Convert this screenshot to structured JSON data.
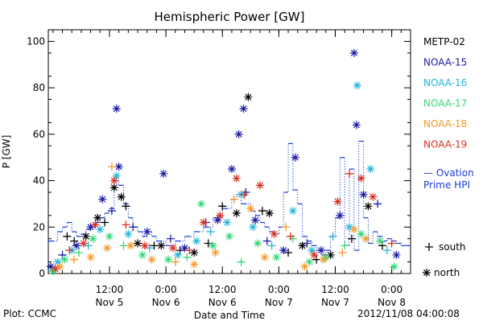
{
  "chart_data": {
    "type": "scatter",
    "title": "Hemispheric Power [GW]",
    "xlabel": "Date and Time",
    "ylabel": "P [GW]",
    "xlim": [
      "2012-11-04T23:00",
      "2012-11-08T04:00"
    ],
    "ylim": [
      0,
      105
    ],
    "grid": false,
    "legend_placement": "right",
    "y_ticks": [
      0,
      20,
      40,
      60,
      80,
      100
    ],
    "x_ticks": [
      {
        "t": "2012-11-05T12:00",
        "line1": "12:00",
        "line2": "Nov 5"
      },
      {
        "t": "2012-11-06T00:00",
        "line1": "0:00",
        "line2": "Nov 6"
      },
      {
        "t": "2012-11-06T12:00",
        "line1": "12:00",
        "line2": "Nov 6"
      },
      {
        "t": "2012-11-07T00:00",
        "line1": "0:00",
        "line2": "Nov 7"
      },
      {
        "t": "2012-11-07T12:00",
        "line1": "12:00",
        "line2": "Nov 7"
      },
      {
        "t": "2012-11-08T00:00",
        "line1": "0:00",
        "line2": "Nov 8"
      }
    ],
    "series": [
      {
        "name": "METP-02",
        "color": "#000000",
        "points": [
          [
            "2012-11-05T03:00",
            16,
            "south"
          ],
          [
            "2012-11-05T04:30",
            14,
            "south"
          ],
          [
            "2012-11-05T07:00",
            16,
            "north"
          ],
          [
            "2012-11-05T09:30",
            24,
            "north"
          ],
          [
            "2012-11-05T11:00",
            22,
            "south"
          ],
          [
            "2012-11-05T13:00",
            37,
            "north"
          ],
          [
            "2012-11-05T14:30",
            33,
            "north"
          ],
          [
            "2012-11-05T15:30",
            29,
            "south"
          ],
          [
            "2012-11-05T18:00",
            13,
            "north"
          ],
          [
            "2012-11-05T21:30",
            12,
            "south"
          ],
          [
            "2012-11-05T23:00",
            12,
            "north"
          ],
          [
            "2012-11-06T03:00",
            10,
            "south"
          ],
          [
            "2012-11-06T06:00",
            9,
            "north"
          ],
          [
            "2012-11-06T09:00",
            13,
            "south"
          ],
          [
            "2012-11-06T12:00",
            29,
            "south"
          ],
          [
            "2012-11-06T15:00",
            26,
            "north"
          ],
          [
            "2012-11-06T17:30",
            76,
            "north"
          ],
          [
            "2012-11-06T20:30",
            27,
            "south"
          ],
          [
            "2012-11-06T22:00",
            26,
            "north"
          ],
          [
            "2012-11-07T02:00",
            9,
            "south"
          ],
          [
            "2012-11-07T05:00",
            12,
            "north"
          ],
          [
            "2012-11-07T08:00",
            6,
            "south"
          ],
          [
            "2012-11-07T11:00",
            8,
            "north"
          ],
          [
            "2012-11-07T15:30",
            15,
            "south"
          ],
          [
            "2012-11-07T19:00",
            29,
            "north"
          ],
          [
            "2012-11-07T22:00",
            12,
            "south"
          ]
        ]
      },
      {
        "name": "NOAA-15",
        "color": "#1a1aa6",
        "points": [
          [
            "2012-11-04T23:30",
            3,
            "north"
          ],
          [
            "2012-11-05T02:00",
            8,
            "south"
          ],
          [
            "2012-11-05T05:00",
            12,
            "north"
          ],
          [
            "2012-11-05T08:00",
            20,
            "north"
          ],
          [
            "2012-11-05T10:30",
            32,
            "north"
          ],
          [
            "2012-11-05T12:30",
            27,
            "south"
          ],
          [
            "2012-11-05T13:30",
            71,
            "north"
          ],
          [
            "2012-11-05T14:00",
            46,
            "north"
          ],
          [
            "2012-11-05T17:00",
            20,
            "south"
          ],
          [
            "2012-11-05T20:00",
            18,
            "north"
          ],
          [
            "2012-11-05T23:30",
            43,
            "north"
          ],
          [
            "2012-11-06T01:00",
            15,
            "south"
          ],
          [
            "2012-11-06T04:00",
            11,
            "north"
          ],
          [
            "2012-11-06T08:30",
            22,
            "south"
          ],
          [
            "2012-11-06T11:00",
            23,
            "north"
          ],
          [
            "2012-11-06T14:00",
            45,
            "north"
          ],
          [
            "2012-11-06T15:30",
            60,
            "north"
          ],
          [
            "2012-11-06T16:30",
            71,
            "north"
          ],
          [
            "2012-11-06T17:00",
            35,
            "south"
          ],
          [
            "2012-11-06T19:00",
            23,
            "north"
          ],
          [
            "2012-11-06T21:30",
            14,
            "south"
          ],
          [
            "2012-11-07T01:00",
            10,
            "north"
          ],
          [
            "2012-11-07T03:30",
            50,
            "north"
          ],
          [
            "2012-11-07T06:00",
            13,
            "south"
          ],
          [
            "2012-11-07T09:00",
            10,
            "north"
          ],
          [
            "2012-11-07T13:00",
            25,
            "north"
          ],
          [
            "2012-11-07T16:00",
            95,
            "north"
          ],
          [
            "2012-11-07T16:30",
            64,
            "north"
          ],
          [
            "2012-11-07T18:00",
            34,
            "north"
          ],
          [
            "2012-11-07T21:00",
            30,
            "south"
          ],
          [
            "2012-11-08T01:00",
            8,
            "north"
          ]
        ]
      },
      {
        "name": "NOAA-16",
        "color": "#22b5d8",
        "points": [
          [
            "2012-11-05T01:00",
            5,
            "north"
          ],
          [
            "2012-11-05T04:00",
            10,
            "north"
          ],
          [
            "2012-11-05T07:30",
            12,
            "south"
          ],
          [
            "2012-11-05T10:00",
            19,
            "north"
          ],
          [
            "2012-11-05T13:30",
            42,
            "north"
          ],
          [
            "2012-11-05T16:00",
            17,
            "north"
          ],
          [
            "2012-11-05T20:30",
            11,
            "south"
          ],
          [
            "2012-11-06T02:30",
            8,
            "north"
          ],
          [
            "2012-11-06T06:30",
            14,
            "north"
          ],
          [
            "2012-11-06T09:30",
            18,
            "south"
          ],
          [
            "2012-11-06T13:00",
            22,
            "north"
          ],
          [
            "2012-11-06T16:00",
            34,
            "north"
          ],
          [
            "2012-11-06T18:30",
            20,
            "north"
          ],
          [
            "2012-11-06T22:30",
            12,
            "south"
          ],
          [
            "2012-11-07T03:00",
            27,
            "north"
          ],
          [
            "2012-11-07T07:00",
            10,
            "north"
          ],
          [
            "2012-11-07T11:30",
            16,
            "south"
          ],
          [
            "2012-11-07T15:00",
            20,
            "north"
          ],
          [
            "2012-11-07T16:40",
            81,
            "north"
          ],
          [
            "2012-11-07T19:30",
            45,
            "north"
          ],
          [
            "2012-11-07T23:00",
            10,
            "south"
          ]
        ]
      },
      {
        "name": "NOAA-17",
        "color": "#33d877",
        "points": [
          [
            "2012-11-05T00:00",
            1,
            "north"
          ],
          [
            "2012-11-05T02:30",
            6,
            "north"
          ],
          [
            "2012-11-05T05:30",
            9,
            "south"
          ],
          [
            "2012-11-05T08:30",
            15,
            "north"
          ],
          [
            "2012-11-05T12:00",
            16,
            "north"
          ],
          [
            "2012-11-05T15:00",
            12,
            "south"
          ],
          [
            "2012-11-05T19:00",
            8,
            "north"
          ],
          [
            "2012-11-06T00:30",
            6,
            "north"
          ],
          [
            "2012-11-06T04:30",
            7,
            "south"
          ],
          [
            "2012-11-06T07:30",
            30,
            "north"
          ],
          [
            "2012-11-06T10:00",
            12,
            "north"
          ],
          [
            "2012-11-06T13:30",
            16,
            "north"
          ],
          [
            "2012-11-06T16:00",
            5,
            "south"
          ],
          [
            "2012-11-06T19:30",
            13,
            "north"
          ],
          [
            "2012-11-06T23:30",
            7,
            "north"
          ],
          [
            "2012-11-07T03:00",
            15,
            "south"
          ],
          [
            "2012-11-07T06:30",
            5,
            "north"
          ],
          [
            "2012-11-07T10:00",
            7,
            "north"
          ],
          [
            "2012-11-07T14:00",
            12,
            "south"
          ],
          [
            "2012-11-07T17:30",
            17,
            "north"
          ],
          [
            "2012-11-07T21:30",
            14,
            "north"
          ],
          [
            "2012-11-08T00:30",
            3,
            "north"
          ]
        ]
      },
      {
        "name": "NOAA-18",
        "color": "#f39a2a",
        "points": [
          [
            "2012-11-05T01:30",
            3,
            "north"
          ],
          [
            "2012-11-05T04:30",
            6,
            "south"
          ],
          [
            "2012-11-05T08:00",
            7,
            "north"
          ],
          [
            "2012-11-05T11:30",
            11,
            "north"
          ],
          [
            "2012-11-05T12:30",
            46,
            "south"
          ],
          [
            "2012-11-05T16:30",
            12,
            "north"
          ],
          [
            "2012-11-05T21:00",
            6,
            "north"
          ],
          [
            "2012-11-06T02:00",
            5,
            "south"
          ],
          [
            "2012-11-06T06:00",
            4,
            "north"
          ],
          [
            "2012-11-06T10:30",
            9,
            "north"
          ],
          [
            "2012-11-06T14:30",
            32,
            "south"
          ],
          [
            "2012-11-06T18:00",
            28,
            "north"
          ],
          [
            "2012-11-06T21:00",
            7,
            "north"
          ],
          [
            "2012-11-07T01:30",
            20,
            "south"
          ],
          [
            "2012-11-07T05:30",
            3,
            "north"
          ],
          [
            "2012-11-07T09:30",
            6,
            "north"
          ],
          [
            "2012-11-07T13:30",
            9,
            "south"
          ],
          [
            "2012-11-07T16:00",
            19,
            "north"
          ],
          [
            "2012-11-07T18:30",
            15,
            "north"
          ]
        ]
      },
      {
        "name": "NOAA-19",
        "color": "#d9301e",
        "points": [
          [
            "2012-11-05T00:30",
            2,
            "north"
          ],
          [
            "2012-11-05T03:30",
            10,
            "south"
          ],
          [
            "2012-11-05T06:30",
            13,
            "north"
          ],
          [
            "2012-11-05T09:00",
            21,
            "north"
          ],
          [
            "2012-11-05T13:00",
            40,
            "north"
          ],
          [
            "2012-11-05T15:30",
            21,
            "south"
          ],
          [
            "2012-11-05T19:30",
            12,
            "north"
          ],
          [
            "2012-11-06T01:30",
            11,
            "north"
          ],
          [
            "2012-11-06T05:00",
            10,
            "south"
          ],
          [
            "2012-11-06T08:00",
            22,
            "north"
          ],
          [
            "2012-11-06T11:30",
            25,
            "north"
          ],
          [
            "2012-11-06T15:00",
            41,
            "north"
          ],
          [
            "2012-11-06T16:40",
            34,
            "south"
          ],
          [
            "2012-11-06T20:00",
            38,
            "north"
          ],
          [
            "2012-11-06T23:00",
            17,
            "north"
          ],
          [
            "2012-11-07T02:30",
            16,
            "south"
          ],
          [
            "2012-11-07T07:30",
            8,
            "north"
          ],
          [
            "2012-11-07T12:30",
            31,
            "north"
          ],
          [
            "2012-11-07T15:00",
            43,
            "south"
          ],
          [
            "2012-11-07T17:30",
            41,
            "north"
          ],
          [
            "2012-11-07T20:00",
            33,
            "north"
          ],
          [
            "2012-11-08T00:00",
            13,
            "south"
          ]
        ]
      }
    ],
    "ovation": {
      "name": "Ovation Prime HPI",
      "label_line1": "Ovation",
      "label_line2": "Prime HPI",
      "color": "#1a3cd8",
      "steps": [
        [
          "2012-11-04T23:00",
          14
        ],
        [
          "2012-11-05T01:00",
          18
        ],
        [
          "2012-11-05T02:00",
          20
        ],
        [
          "2012-11-05T03:00",
          22
        ],
        [
          "2012-11-05T04:00",
          18
        ],
        [
          "2012-11-05T05:00",
          16
        ],
        [
          "2012-11-05T06:00",
          17
        ],
        [
          "2012-11-05T07:00",
          19
        ],
        [
          "2012-11-05T08:00",
          20
        ],
        [
          "2012-11-05T09:00",
          22
        ],
        [
          "2012-11-05T10:00",
          24
        ],
        [
          "2012-11-05T11:00",
          26
        ],
        [
          "2012-11-05T12:00",
          28
        ],
        [
          "2012-11-05T13:00",
          40
        ],
        [
          "2012-11-05T14:00",
          38
        ],
        [
          "2012-11-05T15:00",
          30
        ],
        [
          "2012-11-05T16:00",
          24
        ],
        [
          "2012-11-05T17:00",
          20
        ],
        [
          "2012-11-05T18:00",
          18
        ],
        [
          "2012-11-05T19:00",
          16
        ],
        [
          "2012-11-05T20:00",
          18
        ],
        [
          "2012-11-05T21:00",
          16
        ],
        [
          "2012-11-05T22:00",
          14
        ],
        [
          "2012-11-06T00:00",
          12
        ],
        [
          "2012-11-06T02:00",
          14
        ],
        [
          "2012-11-06T04:00",
          16
        ],
        [
          "2012-11-06T06:00",
          18
        ],
        [
          "2012-11-06T08:00",
          20
        ],
        [
          "2012-11-06T10:00",
          24
        ],
        [
          "2012-11-06T12:00",
          28
        ],
        [
          "2012-11-06T14:00",
          32
        ],
        [
          "2012-11-06T15:00",
          34
        ],
        [
          "2012-11-06T16:00",
          30
        ],
        [
          "2012-11-06T18:00",
          27
        ],
        [
          "2012-11-06T19:00",
          25
        ],
        [
          "2012-11-06T20:00",
          22
        ],
        [
          "2012-11-06T21:00",
          20
        ],
        [
          "2012-11-06T22:00",
          18
        ],
        [
          "2012-11-06T23:00",
          17
        ],
        [
          "2012-11-07T00:00",
          20
        ],
        [
          "2012-11-07T01:00",
          35
        ],
        [
          "2012-11-07T02:00",
          56
        ],
        [
          "2012-11-07T03:00",
          36
        ],
        [
          "2012-11-07T04:00",
          30
        ],
        [
          "2012-11-07T05:00",
          16
        ],
        [
          "2012-11-07T06:00",
          14
        ],
        [
          "2012-11-07T07:00",
          12
        ],
        [
          "2012-11-07T08:00",
          10
        ],
        [
          "2012-11-07T09:00",
          8
        ],
        [
          "2012-11-07T10:00",
          10
        ],
        [
          "2012-11-07T11:00",
          16
        ],
        [
          "2012-11-07T12:00",
          24
        ],
        [
          "2012-11-07T13:00",
          50
        ],
        [
          "2012-11-07T14:00",
          12
        ],
        [
          "2012-11-07T15:00",
          45
        ],
        [
          "2012-11-07T16:00",
          10
        ],
        [
          "2012-11-07T17:00",
          57
        ],
        [
          "2012-11-07T18:00",
          24
        ],
        [
          "2012-11-07T19:00",
          13
        ],
        [
          "2012-11-07T20:00",
          18
        ],
        [
          "2012-11-07T21:00",
          16
        ],
        [
          "2012-11-07T22:00",
          14
        ],
        [
          "2012-11-07T23:00",
          15
        ],
        [
          "2012-11-08T00:00",
          14
        ],
        [
          "2012-11-08T01:00",
          13
        ],
        [
          "2012-11-08T02:00",
          12
        ],
        [
          "2012-11-08T03:00",
          12
        ]
      ]
    }
  },
  "legend": {
    "south_label": "south",
    "north_label": "north",
    "ovation_dash": "—"
  },
  "footer": {
    "plot_credit": "Plot: CCMC",
    "timestamp": "2012/11/08 04:00:08"
  }
}
